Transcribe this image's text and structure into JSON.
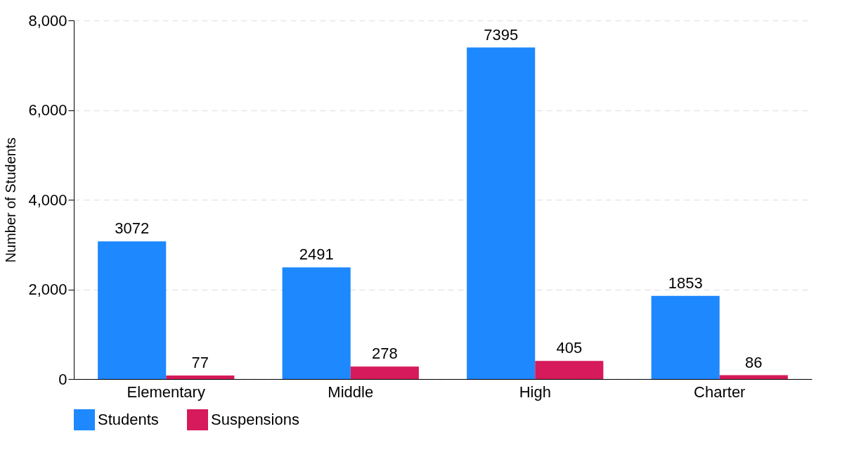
{
  "chart_data": {
    "type": "bar",
    "ylabel": "Number of Students",
    "categories": [
      "Elementary",
      "Middle",
      "High",
      "Charter"
    ],
    "series": [
      {
        "name": "Students",
        "color": "#1e88fe",
        "values": [
          3072,
          2491,
          7395,
          1853
        ]
      },
      {
        "name": "Suspensions",
        "color": "#d61a5b",
        "values": [
          77,
          278,
          405,
          86
        ]
      }
    ],
    "ylim": [
      0,
      8000
    ],
    "yticks": [
      {
        "value": 0,
        "label": "0"
      },
      {
        "value": 2000,
        "label": "2,000"
      },
      {
        "value": 4000,
        "label": "4,000"
      },
      {
        "value": 6000,
        "label": "6,000"
      },
      {
        "value": 8000,
        "label": "8,000"
      }
    ],
    "grid": "y",
    "legend": "bottom",
    "data_labels": true
  }
}
